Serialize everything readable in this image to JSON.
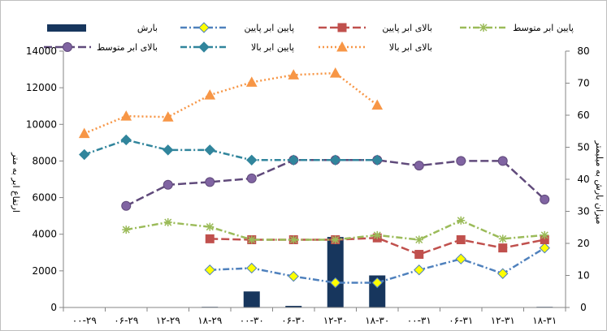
{
  "chart_data": {
    "type": "line",
    "categories": [
      "۰۰-۲۹",
      "۰۶-۲۹",
      "۱۲-۲۹",
      "۱۸-۲۹",
      "۰۰-۳۰",
      "۰۶-۳۰",
      "۱۲-۳۰",
      "۱۸-۳۰",
      "۰۰-۳۱",
      "۰۶-۳۱",
      "۱۲-۳۱",
      "۱۸-۳۱"
    ],
    "y_left": {
      "label": "ارتفاع ابر به متر",
      "min": 0,
      "max": 14000,
      "ticks": [
        0,
        2000,
        4000,
        6000,
        8000,
        10000,
        12000,
        14000
      ]
    },
    "y_right": {
      "label": "میزان بارش به میلیمتر",
      "min": 0,
      "max": 80,
      "ticks": [
        0,
        10,
        20,
        30,
        40,
        50,
        60,
        70,
        80
      ]
    },
    "bar_series": {
      "name": "بارش",
      "axis": "right",
      "color": "#17365d",
      "values": [
        null,
        null,
        null,
        0.2,
        5,
        0.5,
        22,
        10,
        null,
        null,
        null,
        0.2
      ]
    },
    "series": [
      {
        "name": "پایین ابر پایین",
        "axis": "left",
        "color": "#4f81bd",
        "marker": "diamond",
        "marker_color": "#ffff00",
        "dash": "dashdot",
        "values": [
          null,
          null,
          null,
          2050,
          2150,
          1700,
          1350,
          1350,
          2050,
          2650,
          1850,
          3250
        ]
      },
      {
        "name": "بالای ابر پایین",
        "axis": "left",
        "color": "#c0504d",
        "marker": "square",
        "marker_color": "#c0504d",
        "dash": "longdash",
        "values": [
          null,
          null,
          null,
          3750,
          3700,
          3700,
          3700,
          3800,
          2900,
          3700,
          3250,
          3700
        ]
      },
      {
        "name": "پایین ابر متوسط",
        "axis": "left",
        "color": "#9bbb59",
        "marker": "star",
        "marker_color": "#9bbb59",
        "dash": "dashdot",
        "values": [
          null,
          4250,
          4650,
          4400,
          3700,
          3700,
          3700,
          3950,
          3700,
          4750,
          3750,
          3950
        ]
      },
      {
        "name": "بالای ابر متوسط",
        "axis": "left",
        "color": "#604a7b",
        "marker": "circle",
        "marker_color": "#8064a2",
        "dash": "longdash",
        "values": [
          null,
          5550,
          6700,
          6850,
          7050,
          8050,
          8050,
          8050,
          7750,
          8000,
          8000,
          5900
        ]
      },
      {
        "name": "پایین ابر بالا",
        "axis": "left",
        "color": "#31859c",
        "marker": "diamond",
        "marker_color": "#31859c",
        "dash": "dashdot",
        "values": [
          8350,
          9150,
          8600,
          8600,
          8050,
          8050,
          8050,
          8050,
          null,
          null,
          null,
          null
        ]
      },
      {
        "name": "بالای ابر بالا",
        "axis": "left",
        "color": "#f79646",
        "marker": "triangle",
        "marker_color": "#f79646",
        "dash": "dot",
        "values": [
          9500,
          10450,
          10400,
          11600,
          12300,
          12700,
          12800,
          11050,
          null,
          null,
          null,
          null
        ]
      }
    ],
    "grid": false,
    "legend": "top"
  }
}
